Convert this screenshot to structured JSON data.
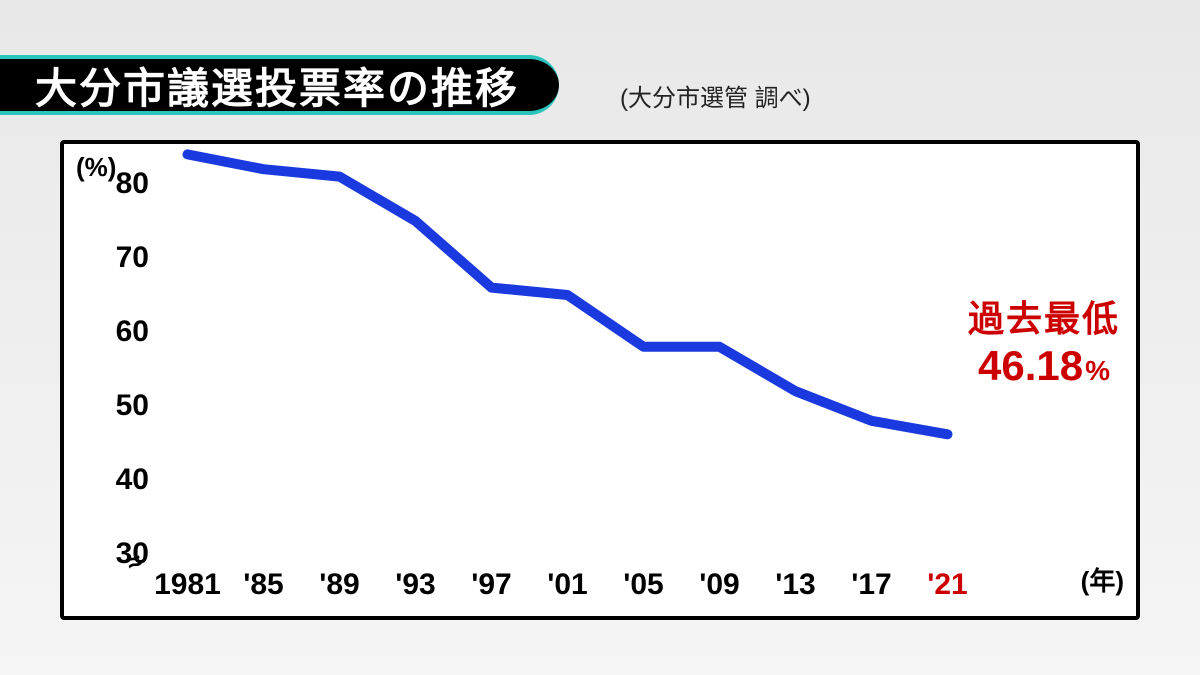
{
  "title": "大分市議選投票率の推移",
  "subtitle": "(大分市選管 調べ)",
  "chart": {
    "type": "line",
    "y_unit": "(%)",
    "x_unit": "(年)",
    "ylim": [
      30,
      80
    ],
    "yticks": [
      30,
      40,
      50,
      60,
      70,
      80
    ],
    "axis_break_symbol": "≈",
    "xticks": [
      "1981",
      "'85",
      "'89",
      "'93",
      "'97",
      "'01",
      "'05",
      "'09",
      "'13",
      "'17",
      "'21"
    ],
    "xtick_highlight_index": 10,
    "series": {
      "color": "#1a3ae0",
      "line_width": 10,
      "values": [
        84,
        82,
        81,
        75,
        66,
        65,
        58,
        58,
        52,
        48,
        46.18
      ],
      "x_positions_pct": [
        3,
        11,
        19,
        27,
        35,
        43,
        51,
        59,
        67,
        75,
        83
      ]
    },
    "background_color": "#ffffff",
    "border_color": "#000000"
  },
  "callout": {
    "label": "過去最低",
    "value": "46.18",
    "unit": "%"
  },
  "colors": {
    "title_bg": "#000000",
    "title_border": "#2bc4bc",
    "highlight": "#cc0000",
    "text": "#000000"
  }
}
